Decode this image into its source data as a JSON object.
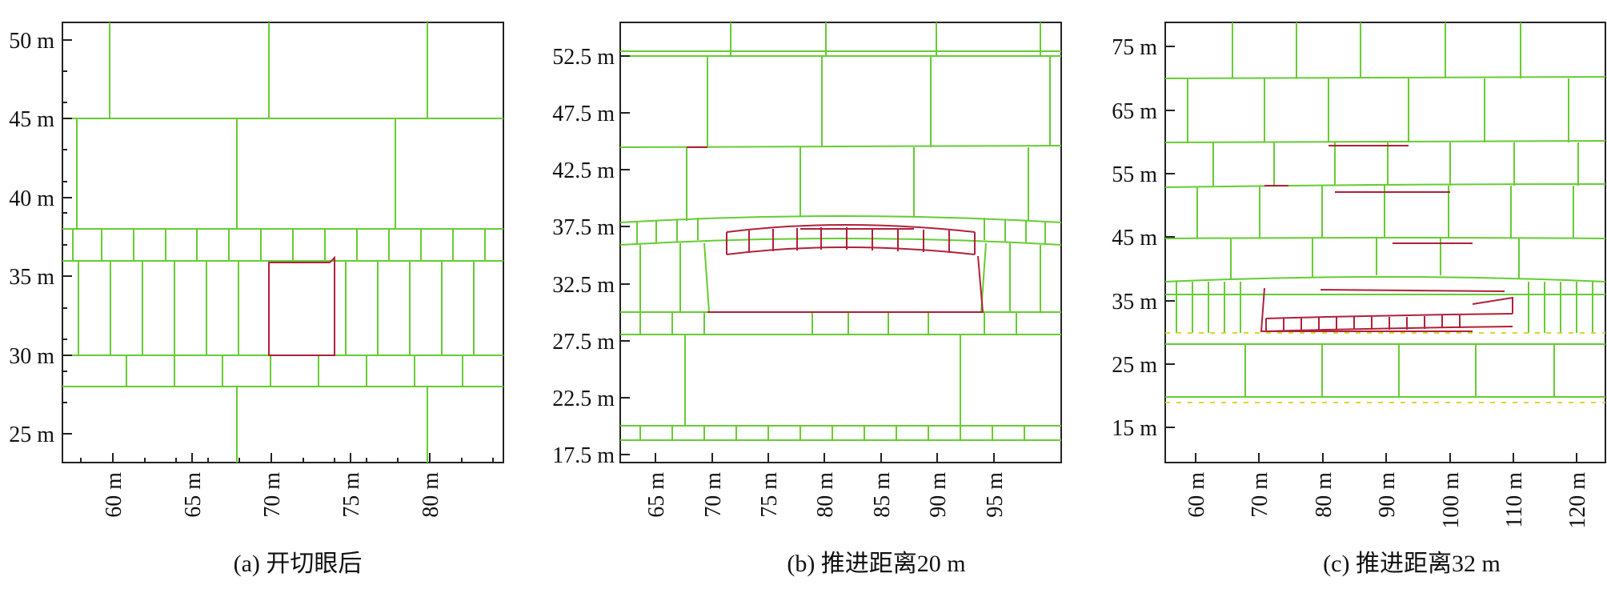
{
  "colors": {
    "frame": "#222222",
    "joint": "#66cc33",
    "failure": "#b0203a",
    "tension": "#ddd533"
  },
  "panels": [
    {
      "caption": "(a) 开切眼后",
      "y_ticks": [
        {
          "value": 25,
          "label": "25 m"
        },
        {
          "value": 30,
          "label": "30 m"
        },
        {
          "value": 35,
          "label": "35 m"
        },
        {
          "value": 40,
          "label": "40 m"
        },
        {
          "value": 45,
          "label": "45 m"
        },
        {
          "value": 50,
          "label": "50 m"
        }
      ],
      "x_ticks": [
        {
          "value": 60,
          "label": "60 m"
        },
        {
          "value": 65,
          "label": "65 m"
        },
        {
          "value": 70,
          "label": "70 m"
        },
        {
          "value": 75,
          "label": "75 m"
        },
        {
          "value": 80,
          "label": "80 m"
        }
      ]
    },
    {
      "caption": "(b) 推进距离20 m",
      "y_ticks": [
        {
          "value": 17.5,
          "label": "17.5 m"
        },
        {
          "value": 22.5,
          "label": "22.5 m"
        },
        {
          "value": 27.5,
          "label": "27.5 m"
        },
        {
          "value": 32.5,
          "label": "32.5 m"
        },
        {
          "value": 37.5,
          "label": "37.5 m"
        },
        {
          "value": 42.5,
          "label": "42.5 m"
        },
        {
          "value": 47.5,
          "label": "47.5 m"
        },
        {
          "value": 52.5,
          "label": "52.5 m"
        }
      ],
      "x_ticks": [
        {
          "value": 65,
          "label": "65 m"
        },
        {
          "value": 70,
          "label": "70 m"
        },
        {
          "value": 75,
          "label": "75 m"
        },
        {
          "value": 80,
          "label": "80 m"
        },
        {
          "value": 85,
          "label": "85 m"
        },
        {
          "value": 90,
          "label": "90 m"
        },
        {
          "value": 95,
          "label": "95 m"
        }
      ]
    },
    {
      "caption": "(c) 推进距离32 m",
      "y_ticks": [
        {
          "value": 15,
          "label": "15 m"
        },
        {
          "value": 25,
          "label": "25 m"
        },
        {
          "value": 35,
          "label": "35 m"
        },
        {
          "value": 45,
          "label": "45 m"
        },
        {
          "value": 55,
          "label": "55 m"
        },
        {
          "value": 65,
          "label": "65 m"
        },
        {
          "value": 75,
          "label": "75 m"
        }
      ],
      "x_ticks": [
        {
          "value": 60,
          "label": "60 m"
        },
        {
          "value": 70,
          "label": "70 m"
        },
        {
          "value": 80,
          "label": "80 m"
        },
        {
          "value": 90,
          "label": "90 m"
        },
        {
          "value": 100,
          "label": "100 m"
        },
        {
          "value": 110,
          "label": "110 m"
        },
        {
          "value": 120,
          "label": "120 m"
        }
      ]
    }
  ]
}
